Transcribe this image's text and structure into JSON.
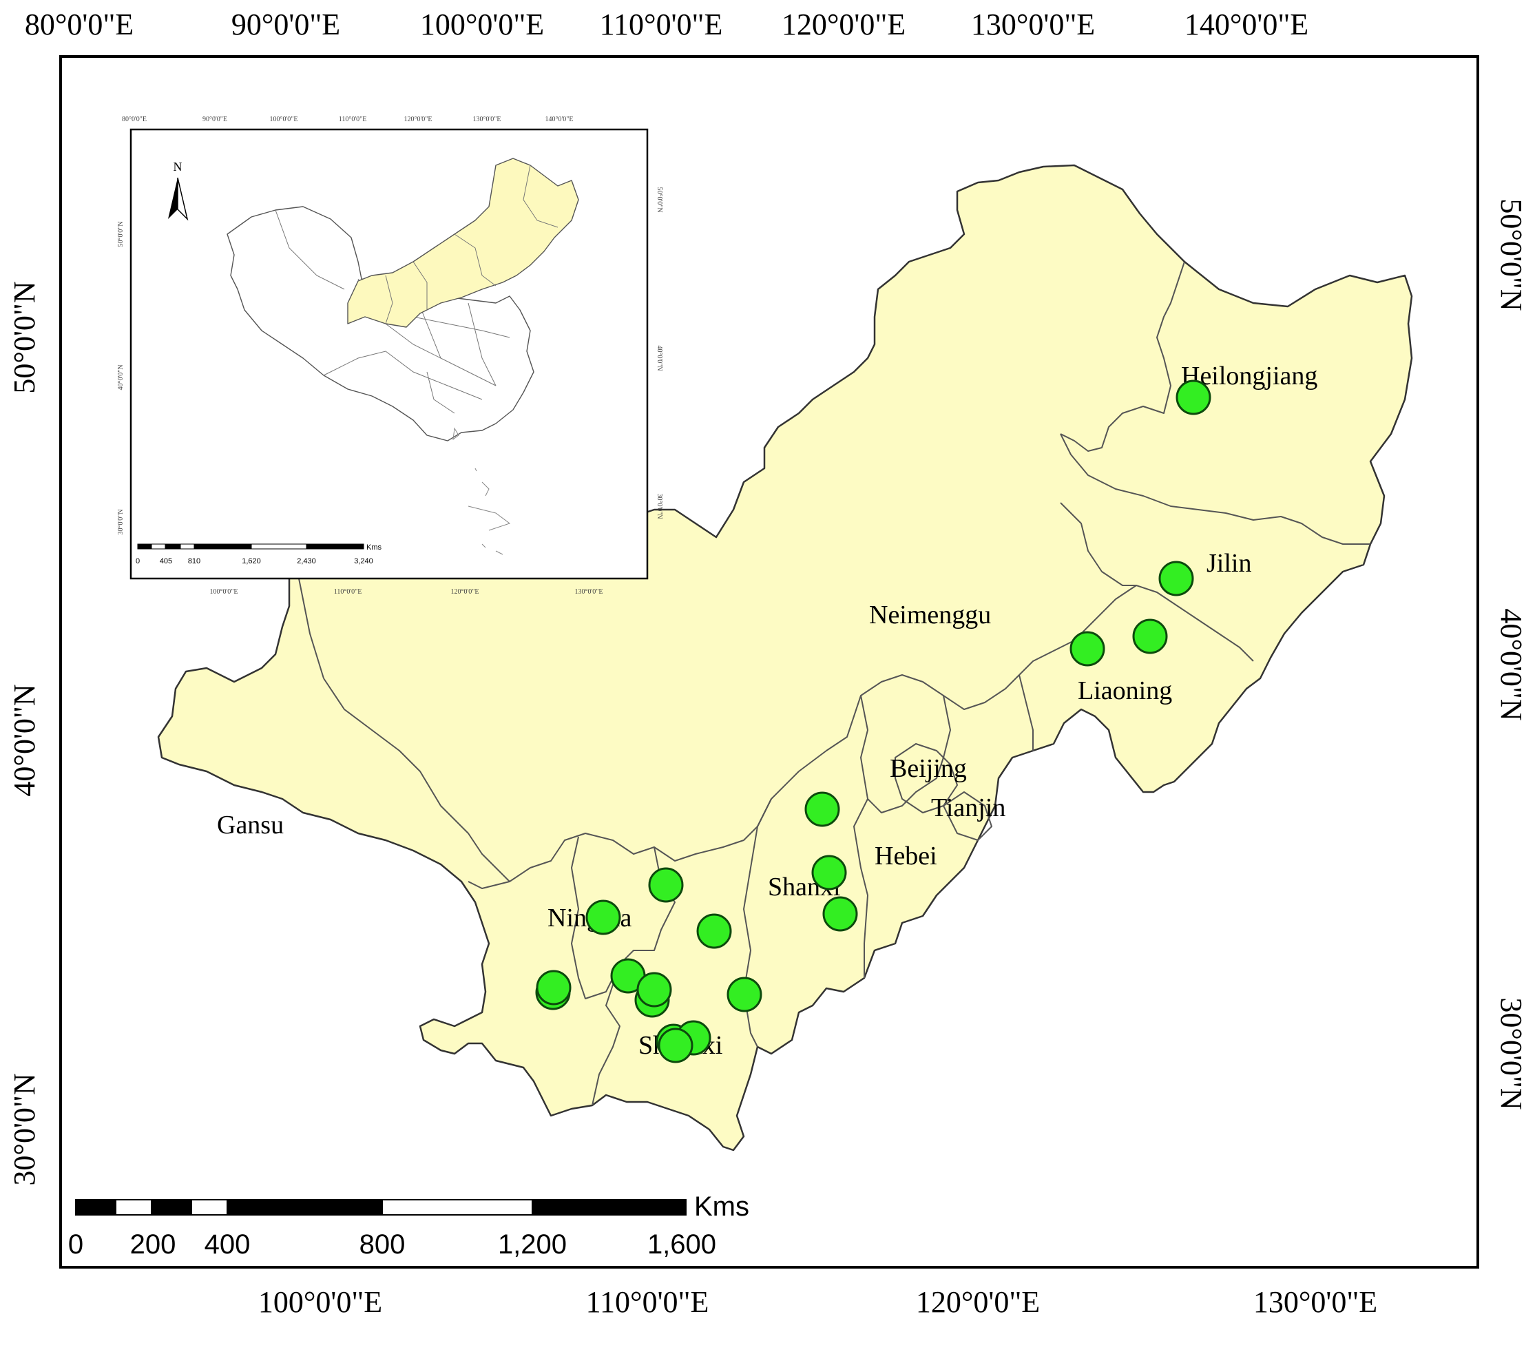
{
  "map": {
    "top_lon_labels": [
      "80°0'0\"E",
      "90°0'0\"E",
      "100°0'0\"E",
      "110°0'0\"E",
      "120°0'0\"E",
      "130°0'0\"E",
      "140°0'0\"E"
    ],
    "bottom_lon_labels": [
      "100°0'0\"E",
      "110°0'0\"E",
      "120°0'0\"E",
      "130°0'0\"E"
    ],
    "left_lat_labels": [
      "50°0'0\"N",
      "40°0'0\"N",
      "30°0'0\"N"
    ],
    "right_lat_labels": [
      "50°0'0\"N",
      "40°0'0\"N",
      "30°0'0\"N"
    ],
    "provinces": [
      "Heilongjiang",
      "Jilin",
      "Liaoning",
      "Neimenggu",
      "Beijing",
      "Tianjin",
      "Hebei",
      "Shanxi",
      "Shaanxi",
      "Ningxia",
      "Gansu"
    ],
    "sample_sites_count": 22,
    "colors": {
      "region_fill": "#fdfbc4",
      "site_fill": "#33ee22",
      "site_stroke": "#0d4a0d",
      "inset_highlight": "#fdf9be"
    }
  },
  "scale_bar": {
    "unit": "Kms",
    "labels": [
      "0",
      "200",
      "400",
      "800",
      "1,200",
      "1,600"
    ]
  },
  "inset": {
    "north_label": "N",
    "top_lon_labels": [
      "80°0'0\"E",
      "90°0'0\"E",
      "100°0'0\"E",
      "110°0'0\"E",
      "120°0'0\"E",
      "130°0'0\"E",
      "140°0'0\"E"
    ],
    "bottom_lon_labels": [
      "100°0'0\"E",
      "110°0'0\"E",
      "120°0'0\"E",
      "130°0'0\"E"
    ],
    "left_lat_labels": [
      "50°0'0\"N",
      "40°0'0\"N",
      "30°0'0\"N"
    ],
    "right_lat_labels": [
      "50°0'0\"N",
      "40°0'0\"N",
      "30°0'0\"N"
    ],
    "scale_unit": "Kms",
    "scale_labels": [
      "0",
      "405",
      "810",
      "1,620",
      "2,430",
      "3,240"
    ]
  }
}
